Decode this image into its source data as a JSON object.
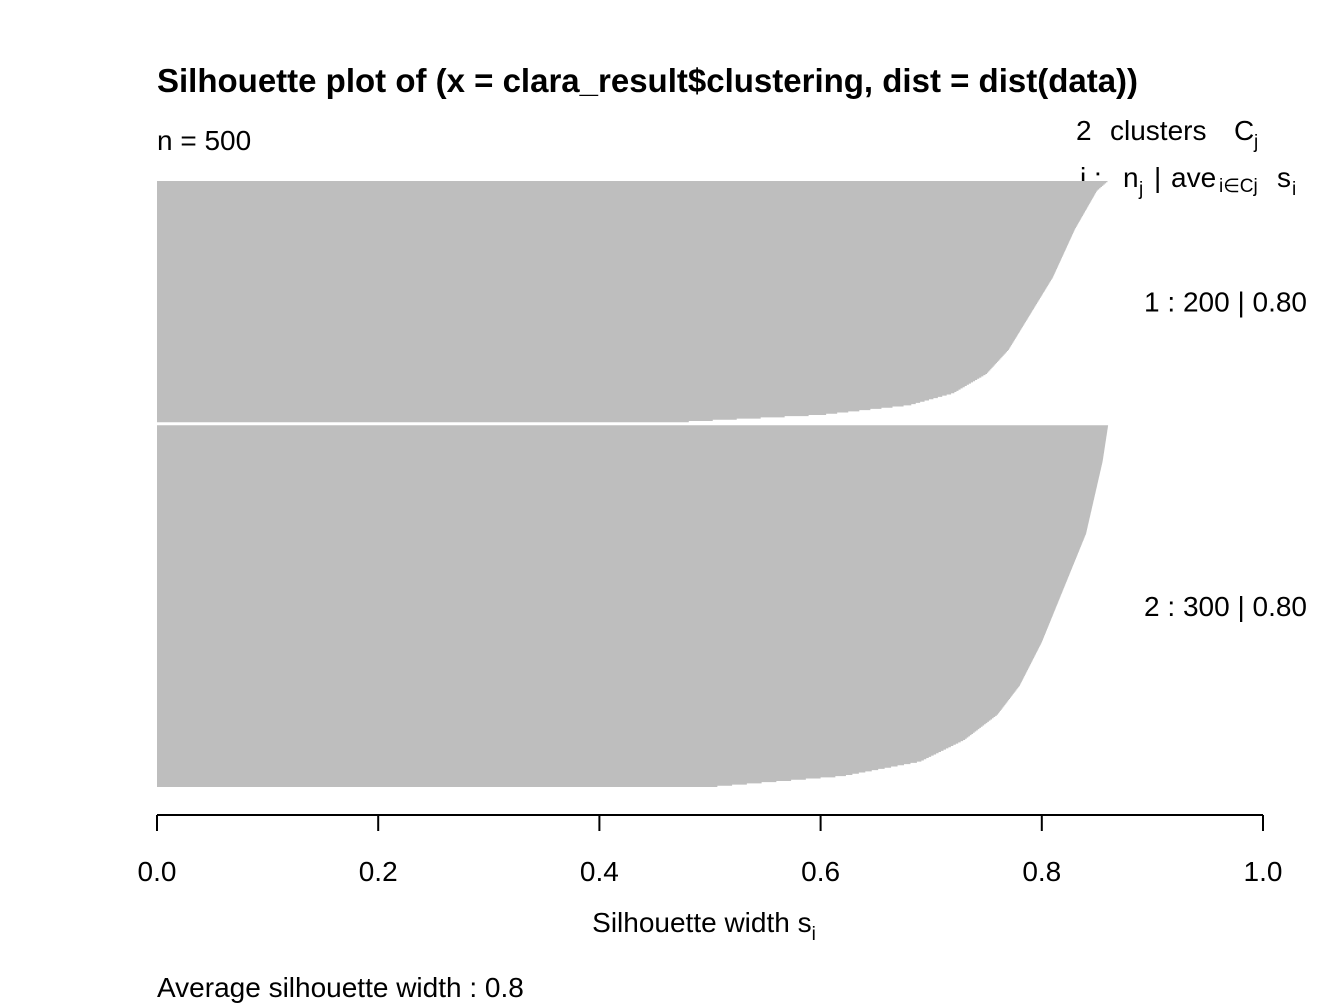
{
  "chart_data": {
    "type": "bar",
    "orientation": "horizontal",
    "title": "Silhouette plot of (x = clara_result$clustering, dist = dist(data))",
    "n_label": "n = 500",
    "header": {
      "clusters_count": "2",
      "clusters_word": "clusters",
      "C": "C",
      "j_sub": "j",
      "line2_j": "j :",
      "n": "n",
      "ave": "ave",
      "ave_sub": "i∈Cj",
      "s": "s",
      "s_sub": "i",
      "sep": "|"
    },
    "xlabel": {
      "main": "Silhouette width s",
      "sub": "i"
    },
    "xlim": [
      0,
      1
    ],
    "ticks": [
      "0.0",
      "0.2",
      "0.4",
      "0.6",
      "0.8",
      "1.0"
    ],
    "avg_label": "Average silhouette width :  0.8",
    "bar_color": "#bebebe",
    "clusters": [
      {
        "label": "1 :   200  |  0.80",
        "n": 200,
        "avg": 0.8,
        "profile": [
          [
            0,
            0.86
          ],
          [
            0.04,
            0.85
          ],
          [
            0.2,
            0.83
          ],
          [
            0.4,
            0.81
          ],
          [
            0.55,
            0.79
          ],
          [
            0.7,
            0.77
          ],
          [
            0.8,
            0.75
          ],
          [
            0.88,
            0.72
          ],
          [
            0.93,
            0.68
          ],
          [
            0.97,
            0.6
          ],
          [
            1.0,
            0.47
          ]
        ]
      },
      {
        "label": "2 :   300  |  0.80",
        "n": 300,
        "avg": 0.8,
        "profile": [
          [
            0,
            0.86
          ],
          [
            0.1,
            0.855
          ],
          [
            0.3,
            0.84
          ],
          [
            0.45,
            0.82
          ],
          [
            0.6,
            0.8
          ],
          [
            0.72,
            0.78
          ],
          [
            0.8,
            0.76
          ],
          [
            0.87,
            0.73
          ],
          [
            0.93,
            0.69
          ],
          [
            0.97,
            0.62
          ],
          [
            1.0,
            0.5
          ]
        ]
      }
    ]
  }
}
